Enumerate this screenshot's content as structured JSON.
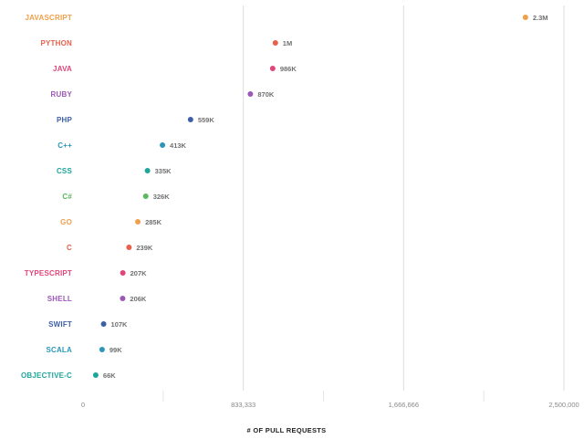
{
  "chart_data": {
    "type": "lollipop",
    "xlabel": "# OF PULL REQUESTS",
    "xlim": [
      0,
      2500000
    ],
    "x_ticks": [
      {
        "value": 0,
        "label": "0"
      },
      {
        "value": 833333,
        "label": "833,333"
      },
      {
        "value": 1666666,
        "label": "1,666,666"
      },
      {
        "value": 2500000,
        "label": "2,500,000"
      }
    ],
    "grid": true,
    "categories": [
      {
        "name": "JAVASCRIPT",
        "value": 2300000,
        "label": "2.3M",
        "color": "#f0a04b"
      },
      {
        "name": "PYTHON",
        "value": 1000000,
        "label": "1M",
        "color": "#e8604c"
      },
      {
        "name": "JAVA",
        "value": 986000,
        "label": "986K",
        "color": "#e0457b"
      },
      {
        "name": "RUBY",
        "value": 870000,
        "label": "870K",
        "color": "#9b59b6"
      },
      {
        "name": "PHP",
        "value": 559000,
        "label": "559K",
        "color": "#3d5fa8"
      },
      {
        "name": "C++",
        "value": 413000,
        "label": "413K",
        "color": "#2a97b8"
      },
      {
        "name": "CSS",
        "value": 335000,
        "label": "335K",
        "color": "#1ea59a"
      },
      {
        "name": "C#",
        "value": 326000,
        "label": "326K",
        "color": "#5cb85c"
      },
      {
        "name": "GO",
        "value": 285000,
        "label": "285K",
        "color": "#f0a04b"
      },
      {
        "name": "C",
        "value": 239000,
        "label": "239K",
        "color": "#e8604c"
      },
      {
        "name": "TYPESCRIPT",
        "value": 207000,
        "label": "207K",
        "color": "#e0457b"
      },
      {
        "name": "SHELL",
        "value": 206000,
        "label": "206K",
        "color": "#9b59b6"
      },
      {
        "name": "SWIFT",
        "value": 107000,
        "label": "107K",
        "color": "#3d5fa8"
      },
      {
        "name": "SCALA",
        "value": 99000,
        "label": "99K",
        "color": "#2a97b8"
      },
      {
        "name": "OBJECTIVE-C",
        "value": 66000,
        "label": "66K",
        "color": "#1ea59a"
      }
    ]
  }
}
